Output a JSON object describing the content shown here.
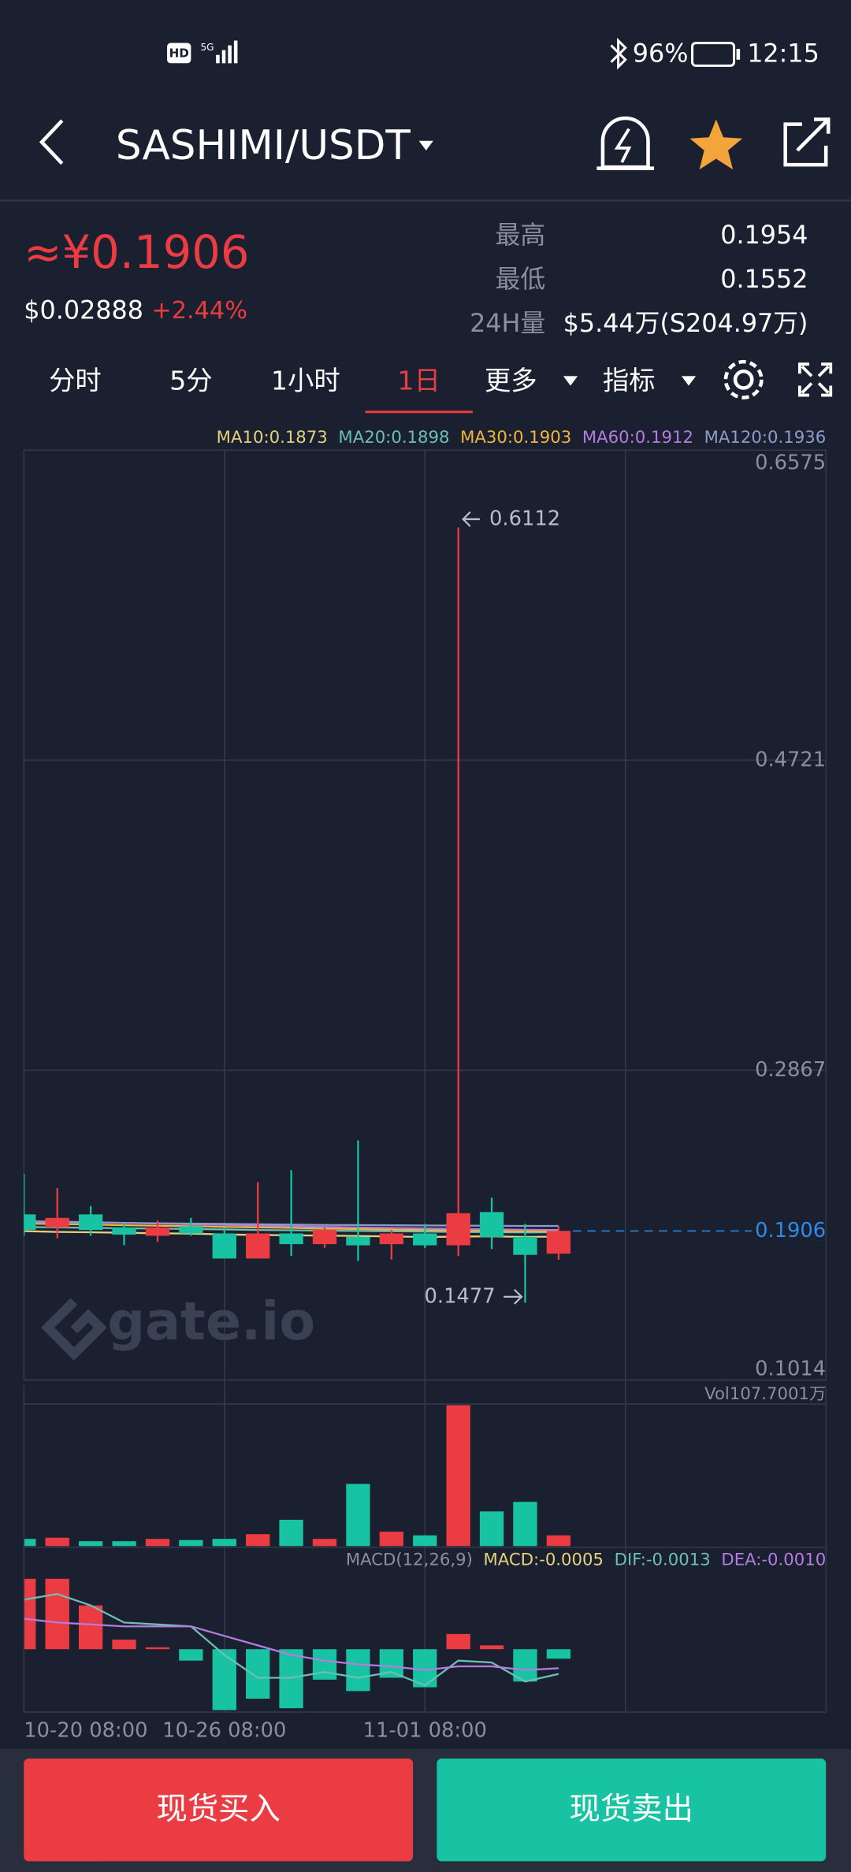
{
  "status_bar": {
    "hd": "HD",
    "battery": "96%",
    "time": "12:15"
  },
  "header": {
    "title": "SASHIMI/USDT"
  },
  "ticker": {
    "price": "≈¥0.1906",
    "usd_price": "$0.02888",
    "change": "+2.44%",
    "stats": [
      {
        "label": "最高",
        "value": "0.1954"
      },
      {
        "label": "最低",
        "value": "0.1552"
      },
      {
        "label": "24H量",
        "value": "$5.44万(S204.97万)"
      }
    ]
  },
  "tabs": {
    "items": [
      "分时",
      "5分",
      "1小时",
      "1日",
      "更多",
      "指标"
    ],
    "active": 3
  },
  "watermark": "gate.io",
  "chart_data": {
    "type": "candlestick",
    "categories": [
      "10-20 08:00",
      null,
      null,
      null,
      null,
      null,
      "10-26 08:00",
      null,
      null,
      null,
      null,
      null,
      "11-01 08:00",
      null,
      null,
      null,
      null
    ],
    "candles": [
      [
        0.2005,
        0.2247,
        0.1877,
        0.1912
      ],
      [
        0.1927,
        0.2162,
        0.1862,
        0.1984
      ],
      [
        0.2005,
        0.2055,
        0.1877,
        0.1912
      ],
      [
        0.1927,
        0.1948,
        0.182,
        0.1884
      ],
      [
        0.1877,
        0.1969,
        0.1841,
        0.1927
      ],
      [
        0.1934,
        0.1984,
        0.1877,
        0.1891
      ],
      [
        0.1891,
        0.1927,
        0.1741,
        0.1741
      ],
      [
        0.1741,
        0.2198,
        0.1741,
        0.1891
      ],
      [
        0.1891,
        0.2269,
        0.1756,
        0.1827
      ],
      [
        0.1827,
        0.1927,
        0.1805,
        0.1912
      ],
      [
        0.187,
        0.2447,
        0.1727,
        0.182
      ],
      [
        0.1827,
        0.1912,
        0.1734,
        0.1891
      ],
      [
        0.1891,
        0.1948,
        0.1805,
        0.182
      ],
      [
        0.182,
        0.6112,
        0.1756,
        0.2012
      ],
      [
        0.2019,
        0.2105,
        0.1798,
        0.187
      ],
      [
        0.187,
        0.1948,
        0.1477,
        0.1763
      ],
      [
        0.177,
        0.1934,
        0.1734,
        0.1906
      ]
    ],
    "up_color": "#ea3c42",
    "down_color": "#17c3a2",
    "ylim": [
      0.1014,
      0.6575
    ],
    "yticks": [
      0.1014,
      0.2867,
      0.4721,
      0.6575
    ],
    "grid": true,
    "ma": [
      {
        "name": "MA10",
        "label": "MA10:0.1873",
        "color": "#e3d17c",
        "values": [
          0.1905,
          0.19,
          0.1898,
          0.1895,
          0.1892,
          0.189,
          0.1885,
          0.1882,
          0.188,
          0.1878,
          0.1876,
          0.1873,
          0.187,
          0.1872,
          0.1874,
          0.187,
          0.1873
        ]
      },
      {
        "name": "MA20",
        "label": "MA20:0.1898",
        "color": "#6cbfb1",
        "values": [
          0.193,
          0.1927,
          0.1925,
          0.1922,
          0.192,
          0.1918,
          0.1915,
          0.1912,
          0.191,
          0.1908,
          0.1906,
          0.1904,
          0.1902,
          0.19,
          0.1899,
          0.1897,
          0.1898
        ]
      },
      {
        "name": "MA30",
        "label": "MA30:0.1903",
        "color": "#f0b53a",
        "values": [
          0.195,
          0.1947,
          0.1944,
          0.194,
          0.1937,
          0.1934,
          0.193,
          0.1927,
          0.1924,
          0.192,
          0.1917,
          0.1914,
          0.1911,
          0.1909,
          0.1906,
          0.1904,
          0.1903
        ]
      },
      {
        "name": "MA60",
        "label": "MA60:0.1912",
        "color": "#b57ce0",
        "values": [
          0.1965,
          0.1962,
          0.1958,
          0.1954,
          0.195,
          0.1946,
          0.1942,
          0.1938,
          0.1934,
          0.193,
          0.1927,
          0.1924,
          0.1921,
          0.1918,
          0.1916,
          0.1913,
          0.1912
        ]
      },
      {
        "name": "MA120",
        "label": "MA120:0.1936",
        "color": "#8d9cc6",
        "values": [
          0.196,
          0.1958,
          0.1956,
          0.1954,
          0.1952,
          0.195,
          0.1948,
          0.1946,
          0.1944,
          0.1942,
          0.1941,
          0.194,
          0.1939,
          0.1938,
          0.1937,
          0.1936,
          0.1936
        ]
      }
    ],
    "volume": {
      "label": "Vol107.7001万",
      "values": [
        5.5,
        6.4,
        3.7,
        3.7,
        5.5,
        4.6,
        5.5,
        9.1,
        20.1,
        5.5,
        47.5,
        11.0,
        8.2,
        107.7,
        26.5,
        33.8,
        8.2
      ],
      "ylim": [
        0,
        107.7
      ]
    },
    "macd": {
      "label": "MACD(12,26,9)",
      "ylim": [
        -0.0033,
        0.0041
      ],
      "hist": {
        "label": "MACD:-0.0005",
        "color": "#e3d17c",
        "values": [
          0.0037,
          0.0037,
          0.0023,
          0.0005,
          0.0001,
          -0.0006,
          -0.0032,
          -0.0026,
          -0.0031,
          -0.0016,
          -0.0022,
          -0.0015,
          -0.002,
          0.0008,
          0.0002,
          -0.0017,
          -0.0005
        ]
      },
      "dif": {
        "label": "DIF:-0.0013",
        "color": "#6cbfb1",
        "values": [
          0.0026,
          0.0029,
          0.0023,
          0.0014,
          0.0013,
          0.0012,
          -0.0003,
          -0.0015,
          -0.0015,
          -0.0012,
          -0.0015,
          -0.0012,
          -0.0019,
          -0.0006,
          -0.0007,
          -0.0017,
          -0.0013
        ]
      },
      "dea": {
        "label": "DEA:-0.0010",
        "color": "#b57ce0",
        "values": [
          0.0016,
          0.0014,
          0.0013,
          0.0012,
          0.0012,
          0.0012,
          0.0007,
          0.0002,
          -0.0003,
          -0.0006,
          -0.0008,
          -0.0009,
          -0.0011,
          -0.0009,
          -0.0009,
          -0.0011,
          -0.001
        ]
      }
    }
  },
  "buttons": {
    "buy": "现货买入",
    "sell": "现货卖出"
  }
}
